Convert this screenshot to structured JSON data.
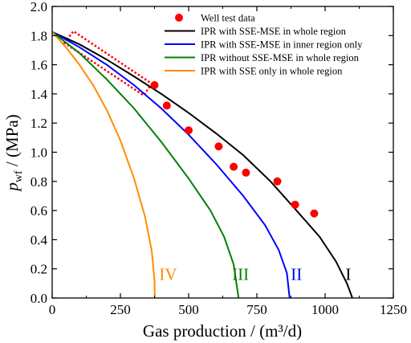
{
  "chart_data": {
    "type": "line",
    "xlabel": "Gas production / (m³/d)",
    "ylabel_main": "p",
    "ylabel_sub": "wf",
    "ylabel_unit": " / (MPa)",
    "xlim": [
      0,
      1250
    ],
    "ylim": [
      0,
      2.0
    ],
    "xticks": [
      0,
      250,
      500,
      750,
      1000,
      1250
    ],
    "yticks": [
      0.0,
      0.2,
      0.4,
      0.6,
      0.8,
      1.0,
      1.2,
      1.4,
      1.6,
      1.8,
      2.0
    ],
    "ytick_labels": [
      "0.0",
      "0.2",
      "0.4",
      "0.6",
      "0.8",
      "1.0",
      "1.2",
      "1.4",
      "1.6",
      "1.8",
      "2.0"
    ],
    "legend_position": "top-right",
    "scatter": {
      "name": "Well test data",
      "color": "#ff0000",
      "points": [
        [
          375,
          1.46
        ],
        [
          420,
          1.32
        ],
        [
          500,
          1.15
        ],
        [
          610,
          1.04
        ],
        [
          665,
          0.9
        ],
        [
          710,
          0.86
        ],
        [
          825,
          0.8
        ],
        [
          890,
          0.64
        ],
        [
          960,
          0.58
        ]
      ]
    },
    "series": [
      {
        "name": "IPR with SSE-MSE in whole region",
        "color": "#000000",
        "roman": "I",
        "points": [
          [
            0,
            1.825
          ],
          [
            100,
            1.74
          ],
          [
            200,
            1.635
          ],
          [
            300,
            1.52
          ],
          [
            400,
            1.4
          ],
          [
            500,
            1.27
          ],
          [
            600,
            1.13
          ],
          [
            700,
            0.98
          ],
          [
            800,
            0.8
          ],
          [
            900,
            0.59
          ],
          [
            980,
            0.42
          ],
          [
            1040,
            0.25
          ],
          [
            1080,
            0.1
          ],
          [
            1100,
            0.0
          ]
        ]
      },
      {
        "name": "IPR with SSE-MSE in inner region only",
        "color": "#0000ff",
        "roman": "II",
        "points": [
          [
            0,
            1.825
          ],
          [
            100,
            1.72
          ],
          [
            200,
            1.6
          ],
          [
            300,
            1.46
          ],
          [
            400,
            1.3
          ],
          [
            500,
            1.12
          ],
          [
            600,
            0.92
          ],
          [
            700,
            0.7
          ],
          [
            780,
            0.5
          ],
          [
            830,
            0.33
          ],
          [
            860,
            0.17
          ],
          [
            870,
            0.0
          ]
        ]
      },
      {
        "name": "IPR without SSE-MSE in whole region",
        "color": "#008000",
        "roman": "III",
        "points": [
          [
            0,
            1.825
          ],
          [
            100,
            1.68
          ],
          [
            200,
            1.5
          ],
          [
            300,
            1.3
          ],
          [
            400,
            1.07
          ],
          [
            500,
            0.82
          ],
          [
            580,
            0.6
          ],
          [
            630,
            0.42
          ],
          [
            665,
            0.23
          ],
          [
            683,
            0.0
          ]
        ]
      },
      {
        "name": "IPR with SSE only in whole region",
        "color": "#ff8c00",
        "roman": "IV",
        "points": [
          [
            0,
            1.825
          ],
          [
            50,
            1.72
          ],
          [
            100,
            1.6
          ],
          [
            150,
            1.46
          ],
          [
            200,
            1.29
          ],
          [
            250,
            1.08
          ],
          [
            300,
            0.82
          ],
          [
            340,
            0.56
          ],
          [
            365,
            0.32
          ],
          [
            375,
            0.12
          ],
          [
            376,
            0.0
          ]
        ]
      }
    ],
    "highlight_box": {
      "color": "#ff0000",
      "corners": [
        [
          45,
          1.75
        ],
        [
          78,
          1.83
        ],
        [
          365,
          1.47
        ],
        [
          335,
          1.39
        ]
      ]
    },
    "roman_labels": [
      {
        "text": "I",
        "color": "#000000",
        "x": 1085,
        "y": 0.2
      },
      {
        "text": "II",
        "color": "#0000ff",
        "x": 895,
        "y": 0.2
      },
      {
        "text": "III",
        "color": "#008000",
        "x": 690,
        "y": 0.2
      },
      {
        "text": "IV",
        "color": "#ff8c00",
        "x": 425,
        "y": 0.2
      }
    ]
  }
}
